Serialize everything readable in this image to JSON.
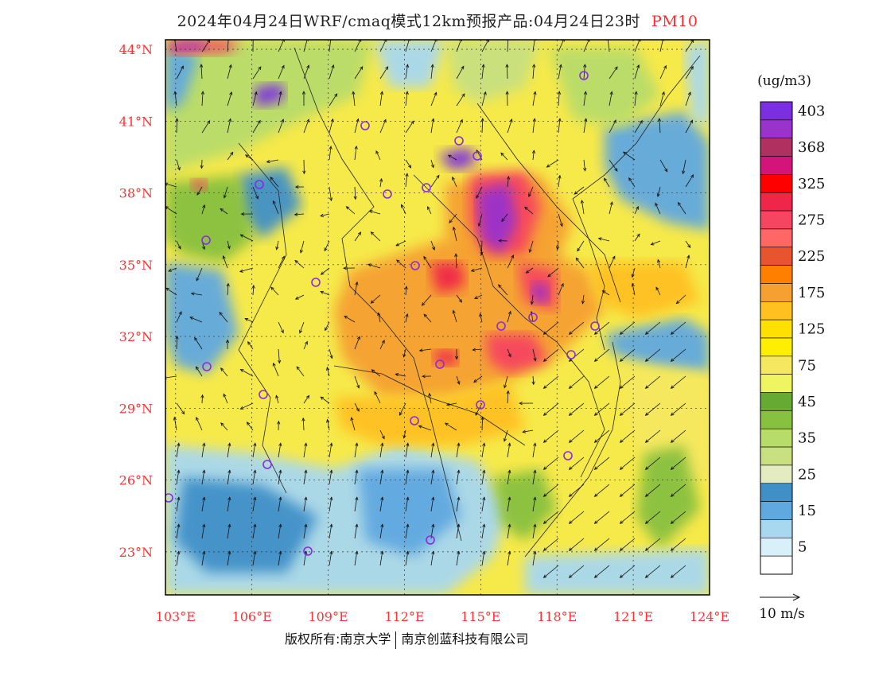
{
  "title": {
    "text": "2024年04月24日WRF/cmaq模式12km预报产品:04月24日23时",
    "pollutant": "PM10"
  },
  "map": {
    "lat_labels": [
      "44°N",
      "41°N",
      "38°N",
      "35°N",
      "32°N",
      "29°N",
      "26°N",
      "23°N"
    ],
    "lon_labels": [
      "103°E",
      "106°E",
      "109°E",
      "112°E",
      "115°E",
      "118°E",
      "121°E",
      "124°E"
    ],
    "label_color": "#ff3333"
  },
  "legend": {
    "unit": "(ug/m3)",
    "levels": [
      {
        "label": "403",
        "color": "#7b2fe0"
      },
      {
        "label": "",
        "color": "#9933cc"
      },
      {
        "label": "368",
        "color": "#b03060"
      },
      {
        "label": "",
        "color": "#d4147a"
      },
      {
        "label": "325",
        "color": "#ff0000"
      },
      {
        "label": "",
        "color": "#f0254a"
      },
      {
        "label": "275",
        "color": "#f54560"
      },
      {
        "label": "",
        "color": "#ff6666"
      },
      {
        "label": "225",
        "color": "#e8542e"
      },
      {
        "label": "",
        "color": "#ff8000"
      },
      {
        "label": "175",
        "color": "#f5a030"
      },
      {
        "label": "",
        "color": "#ffc020"
      },
      {
        "label": "125",
        "color": "#ffe000"
      },
      {
        "label": "",
        "color": "#ffee00"
      },
      {
        "label": "75",
        "color": "#f5e860"
      },
      {
        "label": "",
        "color": "#eef560"
      },
      {
        "label": "45",
        "color": "#66aa33"
      },
      {
        "label": "",
        "color": "#88c040"
      },
      {
        "label": "35",
        "color": "#b8dc6a"
      },
      {
        "label": "",
        "color": "#c8e080"
      },
      {
        "label": "25",
        "color": "#e2ecc0"
      },
      {
        "label": "",
        "color": "#4090c8"
      },
      {
        "label": "15",
        "color": "#60a8e0"
      },
      {
        "label": "",
        "color": "#a8d8f0"
      },
      {
        "label": "5",
        "color": "#d8f0fa"
      },
      {
        "label": "",
        "color": "#ffffff"
      }
    ]
  },
  "wind_scale": {
    "label": "10 m/s"
  },
  "footer": {
    "left": "版权所有:南京大学",
    "right": "南京创蓝科技有限公司"
  }
}
